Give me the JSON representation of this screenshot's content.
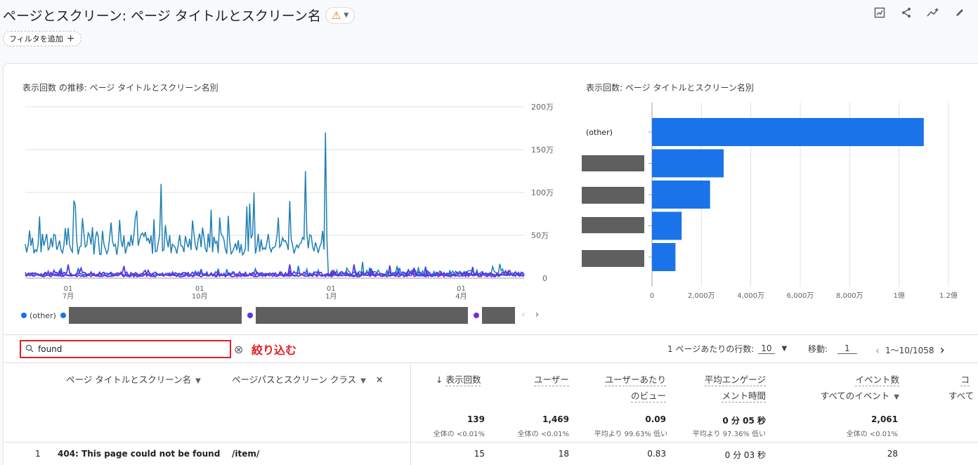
{
  "header": {
    "title": "ページとスクリーン: ページ タイトルとスクリーン名",
    "warning_icon": "warning-triangle-icon",
    "add_filter_label": "フィルタを追加",
    "icons": [
      "customize-report-icon",
      "share-icon",
      "insights-icon",
      "edit-icon"
    ]
  },
  "line_chart": {
    "title": "表示回数 の推移: ページ タイトルとスクリーン名別",
    "ytick_labels": [
      "200万",
      "150万",
      "100万",
      "50万",
      "0"
    ],
    "xtick_days": [
      "01",
      "01",
      "01",
      "01"
    ],
    "xtick_months": [
      "7月",
      "10月",
      "1月",
      "4月"
    ],
    "legend": {
      "other_label": "(other)"
    }
  },
  "bar_chart": {
    "title": "表示回数: ページ タイトルとスクリーン名別",
    "first_label": "(other)",
    "xtick_labels": [
      "0",
      "2,000万",
      "4,000万",
      "6,000万",
      "8,000万",
      "1億",
      "1.2億"
    ]
  },
  "chart_data": [
    {
      "type": "line",
      "title": "表示回数 の推移: ページ タイトルとスクリーン名別",
      "x_range": [
        "2023-06-01",
        "2024-05-15"
      ],
      "xticks": [
        "7月",
        "10月",
        "1月",
        "4月"
      ],
      "ylim": [
        0,
        2000000
      ],
      "yticks": [
        "0",
        "50万",
        "100万",
        "150万",
        "200万"
      ],
      "grid": true,
      "legend_position": "bottom",
      "series": [
        {
          "name": "(other)",
          "color": "#1a73e8",
          "approx_level": 400000,
          "approx_peak": 1700000,
          "drops_after": "2024-01-01",
          "level_after": 100000
        },
        {
          "color": "#1a73e8",
          "approx_level": 40000
        },
        {
          "color": "#4b3fdd",
          "approx_level": 50000
        },
        {
          "color": "#7b2bd6",
          "approx_level": 30000
        }
      ]
    },
    {
      "type": "bar",
      "orientation": "horizontal",
      "title": "表示回数: ページ タイトルとスクリーン名別",
      "categories": [
        "(other)",
        "",
        "",
        "",
        ""
      ],
      "values": [
        110000000,
        29000000,
        23500000,
        12000000,
        9500000
      ],
      "xlim": [
        0,
        120000000
      ],
      "xticks": [
        "0",
        "2,000万",
        "4,000万",
        "6,000万",
        "8,000万",
        "1億",
        "1.2億"
      ],
      "color": "#1a73e8"
    }
  ],
  "table": {
    "search_value": "found",
    "search_annotation": "絞り込む",
    "rows_per_page_label": "1 ページあたりの行数:",
    "rows_per_page_value": "10",
    "goto_label": "移動:",
    "goto_value": "1",
    "range_label": "1～10/1058",
    "columns": {
      "dim1": "ページ タイトルとスクリーン名",
      "dim2": "ページパスとスクリーン クラス",
      "views": "表示回数",
      "users": "ユーザー",
      "views_per_user_1": "ユーザーあたり",
      "views_per_user_2": "のビュー",
      "engagement_1": "平均エンゲージ",
      "engagement_2": "メント時間",
      "events_1": "イベント数",
      "events_2": "すべてのイベント",
      "next_1": "コ",
      "next_2": "すべて"
    },
    "totals": {
      "views": "139",
      "views_sub": "全体の <0.01%",
      "users": "1,469",
      "users_sub": "全体の <0.01%",
      "vpu": "0.09",
      "vpu_sub": "平均より 99.63% 低い",
      "eng": "0 分 05 秒",
      "eng_sub": "平均より 97.36% 低い",
      "events": "2,061",
      "events_sub": "全体の <0.01%"
    },
    "rows": [
      {
        "index": "1",
        "title": "404: This page could not be found",
        "path": "/item/",
        "views": "15",
        "users": "18",
        "vpu": "0.83",
        "eng": "0 分 03 秒",
        "events": "28"
      }
    ]
  }
}
